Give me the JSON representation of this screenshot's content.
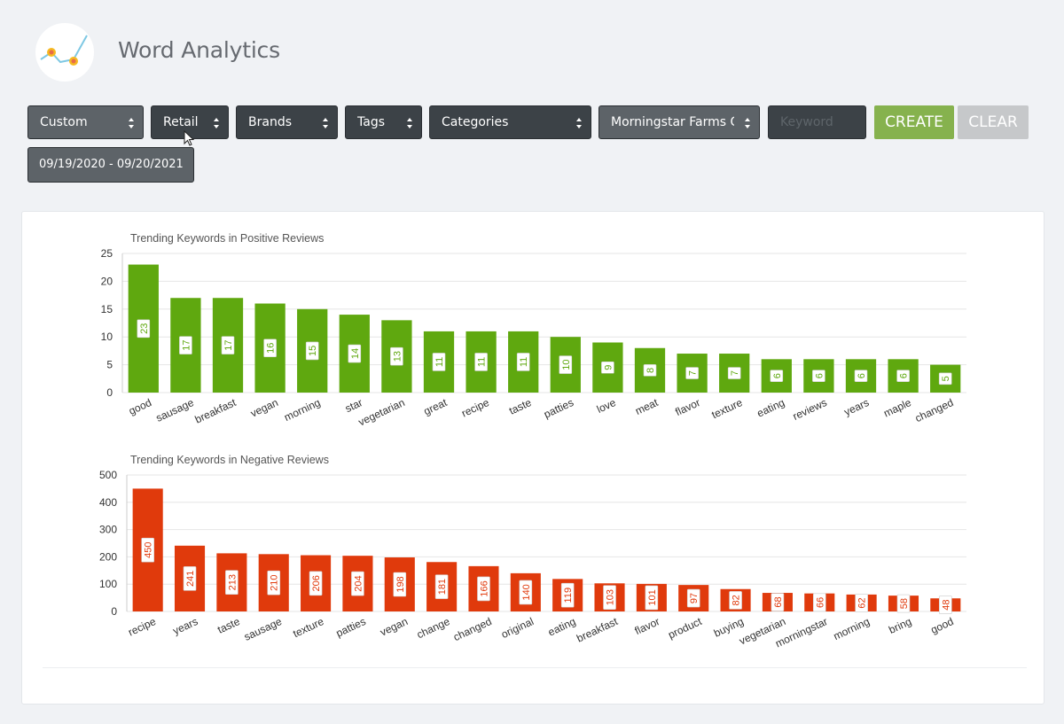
{
  "app": {
    "title": "Word Analytics"
  },
  "filters": {
    "period": "Custom",
    "retail": "Retail",
    "brands": "Brands",
    "tags": "Tags",
    "categories": "Categories",
    "product": "Morningstar Farms Original"
  },
  "keyword": {
    "placeholder": "Keyword",
    "value": ""
  },
  "buttons": {
    "create": "CREATE",
    "clear": "CLEAR"
  },
  "date_range": "09/19/2020 - 09/20/2021",
  "colors": {
    "positive": "#5fa80f",
    "negative": "#e03a0c",
    "create": "#86b24e"
  },
  "chart_data": [
    {
      "type": "bar",
      "title": "Trending Keywords in Positive Reviews",
      "categories": [
        "good",
        "sausage",
        "breakfast",
        "vegan",
        "morning",
        "star",
        "vegetarian",
        "great",
        "recipe",
        "taste",
        "patties",
        "love",
        "meat",
        "flavor",
        "texture",
        "eating",
        "reviews",
        "years",
        "maple",
        "changed"
      ],
      "values": [
        23,
        17,
        17,
        16,
        15,
        14,
        13,
        11,
        11,
        11,
        10,
        9,
        8,
        7,
        7,
        6,
        6,
        6,
        6,
        5
      ],
      "ylim": [
        0,
        25
      ],
      "yticks": [
        0,
        5,
        10,
        15,
        20,
        25
      ],
      "grid": true,
      "data_labels": true
    },
    {
      "type": "bar",
      "title": "Trending Keywords in Negative Reviews",
      "categories": [
        "recipe",
        "years",
        "taste",
        "sausage",
        "texture",
        "patties",
        "vegan",
        "change",
        "changed",
        "original",
        "eating",
        "breakfast",
        "flavor",
        "product",
        "buying",
        "vegetarian",
        "morningstar",
        "morning",
        "bring",
        "good"
      ],
      "values": [
        450,
        241,
        213,
        210,
        206,
        204,
        198,
        181,
        166,
        140,
        119,
        103,
        101,
        97,
        82,
        68,
        66,
        62,
        58,
        48
      ],
      "ylim": [
        0,
        500
      ],
      "yticks": [
        0,
        100,
        200,
        300,
        400,
        500
      ],
      "grid": true,
      "data_labels": true
    }
  ]
}
